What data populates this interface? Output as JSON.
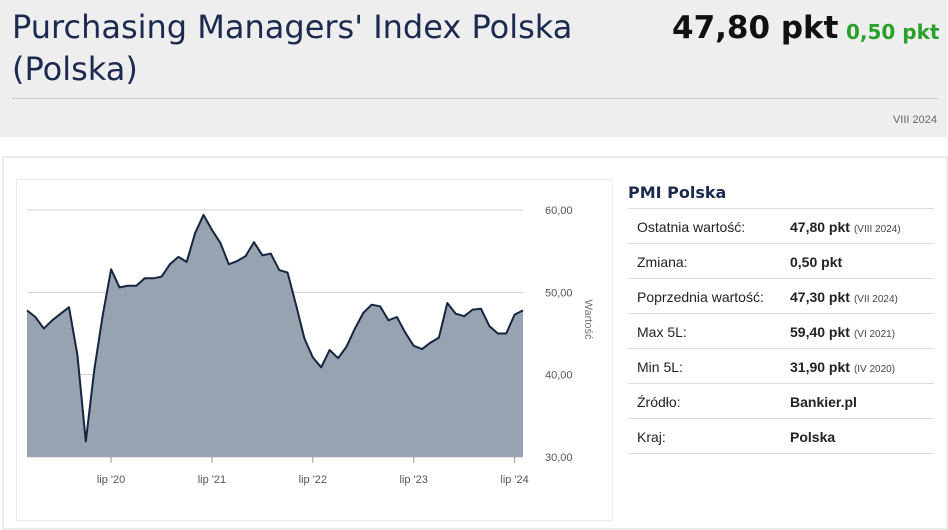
{
  "header": {
    "title": "Purchasing Managers' Index Polska (Polska)",
    "value": "47,80 pkt",
    "change": "0,50 pkt",
    "period": "VIII 2024"
  },
  "table": {
    "title": "PMI Polska",
    "rows": [
      {
        "label": "Ostatnia wartość:",
        "value": "47,80 pkt",
        "note": "(VIII 2024)"
      },
      {
        "label": "Zmiana:",
        "value": "0,50 pkt",
        "note": ""
      },
      {
        "label": "Poprzednia wartość:",
        "value": "47,30 pkt",
        "note": "(VII 2024)"
      },
      {
        "label": "Max 5L:",
        "value": "59,40 pkt",
        "note": "(VI 2021)"
      },
      {
        "label": "Min 5L:",
        "value": "31,90 pkt",
        "note": "(IV 2020)"
      },
      {
        "label": "Źródło:",
        "value": "Bankier.pl",
        "note": ""
      },
      {
        "label": "Kraj:",
        "value": "Polska",
        "note": ""
      }
    ]
  },
  "colors": {
    "area_fill": "#98a3b1",
    "line": "#16253f",
    "change_positive": "#2aa12a",
    "title": "#1b2a4e"
  },
  "chart_data": {
    "type": "area",
    "ylabel": "Wartość",
    "ylim": [
      30,
      60
    ],
    "yticks": [
      "30,00",
      "40,00",
      "50,00",
      "60,00"
    ],
    "grid": true,
    "legend": "none",
    "xtick_labels": [
      "lip '20",
      "lip '21",
      "lip '22",
      "lip '23",
      "lip '24"
    ],
    "series": [
      {
        "x": [
          "2019-09",
          "2019-10",
          "2019-11",
          "2019-12",
          "2020-01",
          "2020-02",
          "2020-03",
          "2020-04",
          "2020-05",
          "2020-06",
          "2020-07",
          "2020-08",
          "2020-09",
          "2020-10",
          "2020-11",
          "2020-12",
          "2021-01",
          "2021-02",
          "2021-03",
          "2021-04",
          "2021-05",
          "2021-06",
          "2021-07",
          "2021-08",
          "2021-09",
          "2021-10",
          "2021-11",
          "2021-12",
          "2022-01",
          "2022-02",
          "2022-03",
          "2022-04",
          "2022-05",
          "2022-06",
          "2022-07",
          "2022-08",
          "2022-09",
          "2022-10",
          "2022-11",
          "2022-12",
          "2023-01",
          "2023-02",
          "2023-03",
          "2023-04",
          "2023-05",
          "2023-06",
          "2023-07",
          "2023-08",
          "2023-09",
          "2023-10",
          "2023-11",
          "2023-12",
          "2024-01",
          "2024-02",
          "2024-03",
          "2024-04",
          "2024-05",
          "2024-06",
          "2024-07",
          "2024-08"
        ],
        "values": [
          47.8,
          47.0,
          45.6,
          46.6,
          47.4,
          48.2,
          42.4,
          31.9,
          40.6,
          47.2,
          52.8,
          50.6,
          50.8,
          50.8,
          51.7,
          51.7,
          51.9,
          53.4,
          54.3,
          53.7,
          57.2,
          59.4,
          57.6,
          56.0,
          53.4,
          53.8,
          54.4,
          56.1,
          54.5,
          54.7,
          52.7,
          52.4,
          48.5,
          44.4,
          42.1,
          40.9,
          43.0,
          42.0,
          43.4,
          45.6,
          47.5,
          48.5,
          48.3,
          46.6,
          47.0,
          45.1,
          43.5,
          43.1,
          43.9,
          44.5,
          48.7,
          47.4,
          47.1,
          47.9,
          48.0,
          45.9,
          45.0,
          45.0,
          47.3,
          47.8
        ]
      }
    ]
  }
}
